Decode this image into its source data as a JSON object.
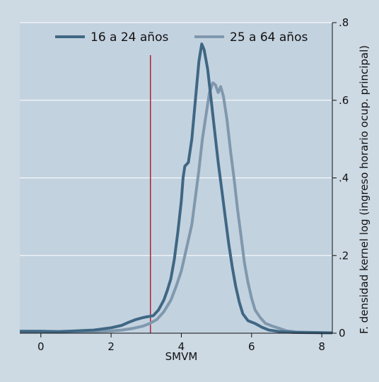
{
  "chart_data": {
    "type": "line",
    "title": "",
    "xlabel": "SMVM",
    "ylabel": "F. densidad  kernel log (ingreso horario ocup. principal)",
    "xlim": [
      -0.6,
      8.3
    ],
    "ylim": [
      0,
      0.8
    ],
    "x_ticks": [
      "0",
      "2",
      "4",
      "6",
      "8"
    ],
    "y_ticks": [
      "0",
      ".2",
      ".4",
      ".6",
      ".8"
    ],
    "grid": true,
    "y_axis_side": "right",
    "legend_position": "top",
    "reference_line": {
      "x": 3.12,
      "color": "#b0213c"
    },
    "series": [
      {
        "name": "16 a 24 años",
        "color": "#3f6784",
        "points": [
          [
            -0.6,
            0.005
          ],
          [
            0,
            0.005
          ],
          [
            0.5,
            0.004
          ],
          [
            1,
            0.006
          ],
          [
            1.5,
            0.008
          ],
          [
            2,
            0.014
          ],
          [
            2.3,
            0.02
          ],
          [
            2.5,
            0.028
          ],
          [
            2.7,
            0.035
          ],
          [
            2.9,
            0.04
          ],
          [
            3.0,
            0.042
          ],
          [
            3.2,
            0.045
          ],
          [
            3.35,
            0.06
          ],
          [
            3.5,
            0.085
          ],
          [
            3.6,
            0.11
          ],
          [
            3.7,
            0.14
          ],
          [
            3.8,
            0.19
          ],
          [
            3.9,
            0.26
          ],
          [
            4.0,
            0.34
          ],
          [
            4.05,
            0.4
          ],
          [
            4.1,
            0.43
          ],
          [
            4.2,
            0.44
          ],
          [
            4.3,
            0.5
          ],
          [
            4.4,
            0.6
          ],
          [
            4.5,
            0.7
          ],
          [
            4.58,
            0.745
          ],
          [
            4.65,
            0.73
          ],
          [
            4.75,
            0.68
          ],
          [
            4.85,
            0.6
          ],
          [
            4.95,
            0.52
          ],
          [
            5.05,
            0.44
          ],
          [
            5.15,
            0.37
          ],
          [
            5.25,
            0.3
          ],
          [
            5.35,
            0.23
          ],
          [
            5.45,
            0.17
          ],
          [
            5.55,
            0.12
          ],
          [
            5.65,
            0.08
          ],
          [
            5.75,
            0.05
          ],
          [
            5.9,
            0.032
          ],
          [
            6.1,
            0.025
          ],
          [
            6.3,
            0.015
          ],
          [
            6.5,
            0.008
          ],
          [
            6.8,
            0.004
          ],
          [
            7.2,
            0.002
          ],
          [
            8.3,
            0.001
          ]
        ]
      },
      {
        "name": "25 a 64 años",
        "color": "#7f98ad",
        "points": [
          [
            -0.6,
            0.003
          ],
          [
            0,
            0.003
          ],
          [
            1,
            0.003
          ],
          [
            1.5,
            0.004
          ],
          [
            2,
            0.006
          ],
          [
            2.3,
            0.008
          ],
          [
            2.6,
            0.012
          ],
          [
            2.9,
            0.018
          ],
          [
            3.1,
            0.025
          ],
          [
            3.3,
            0.035
          ],
          [
            3.5,
            0.055
          ],
          [
            3.7,
            0.085
          ],
          [
            3.85,
            0.12
          ],
          [
            4.0,
            0.16
          ],
          [
            4.1,
            0.2
          ],
          [
            4.2,
            0.24
          ],
          [
            4.3,
            0.28
          ],
          [
            4.4,
            0.35
          ],
          [
            4.5,
            0.42
          ],
          [
            4.6,
            0.5
          ],
          [
            4.7,
            0.56
          ],
          [
            4.8,
            0.62
          ],
          [
            4.9,
            0.645
          ],
          [
            4.97,
            0.64
          ],
          [
            5.05,
            0.62
          ],
          [
            5.12,
            0.635
          ],
          [
            5.2,
            0.61
          ],
          [
            5.3,
            0.55
          ],
          [
            5.4,
            0.47
          ],
          [
            5.5,
            0.4
          ],
          [
            5.6,
            0.32
          ],
          [
            5.7,
            0.25
          ],
          [
            5.8,
            0.18
          ],
          [
            5.9,
            0.13
          ],
          [
            6.0,
            0.09
          ],
          [
            6.1,
            0.06
          ],
          [
            6.25,
            0.04
          ],
          [
            6.4,
            0.025
          ],
          [
            6.6,
            0.018
          ],
          [
            6.8,
            0.012
          ],
          [
            7.0,
            0.006
          ],
          [
            7.3,
            0.003
          ],
          [
            8.3,
            0.001
          ]
        ]
      }
    ]
  }
}
